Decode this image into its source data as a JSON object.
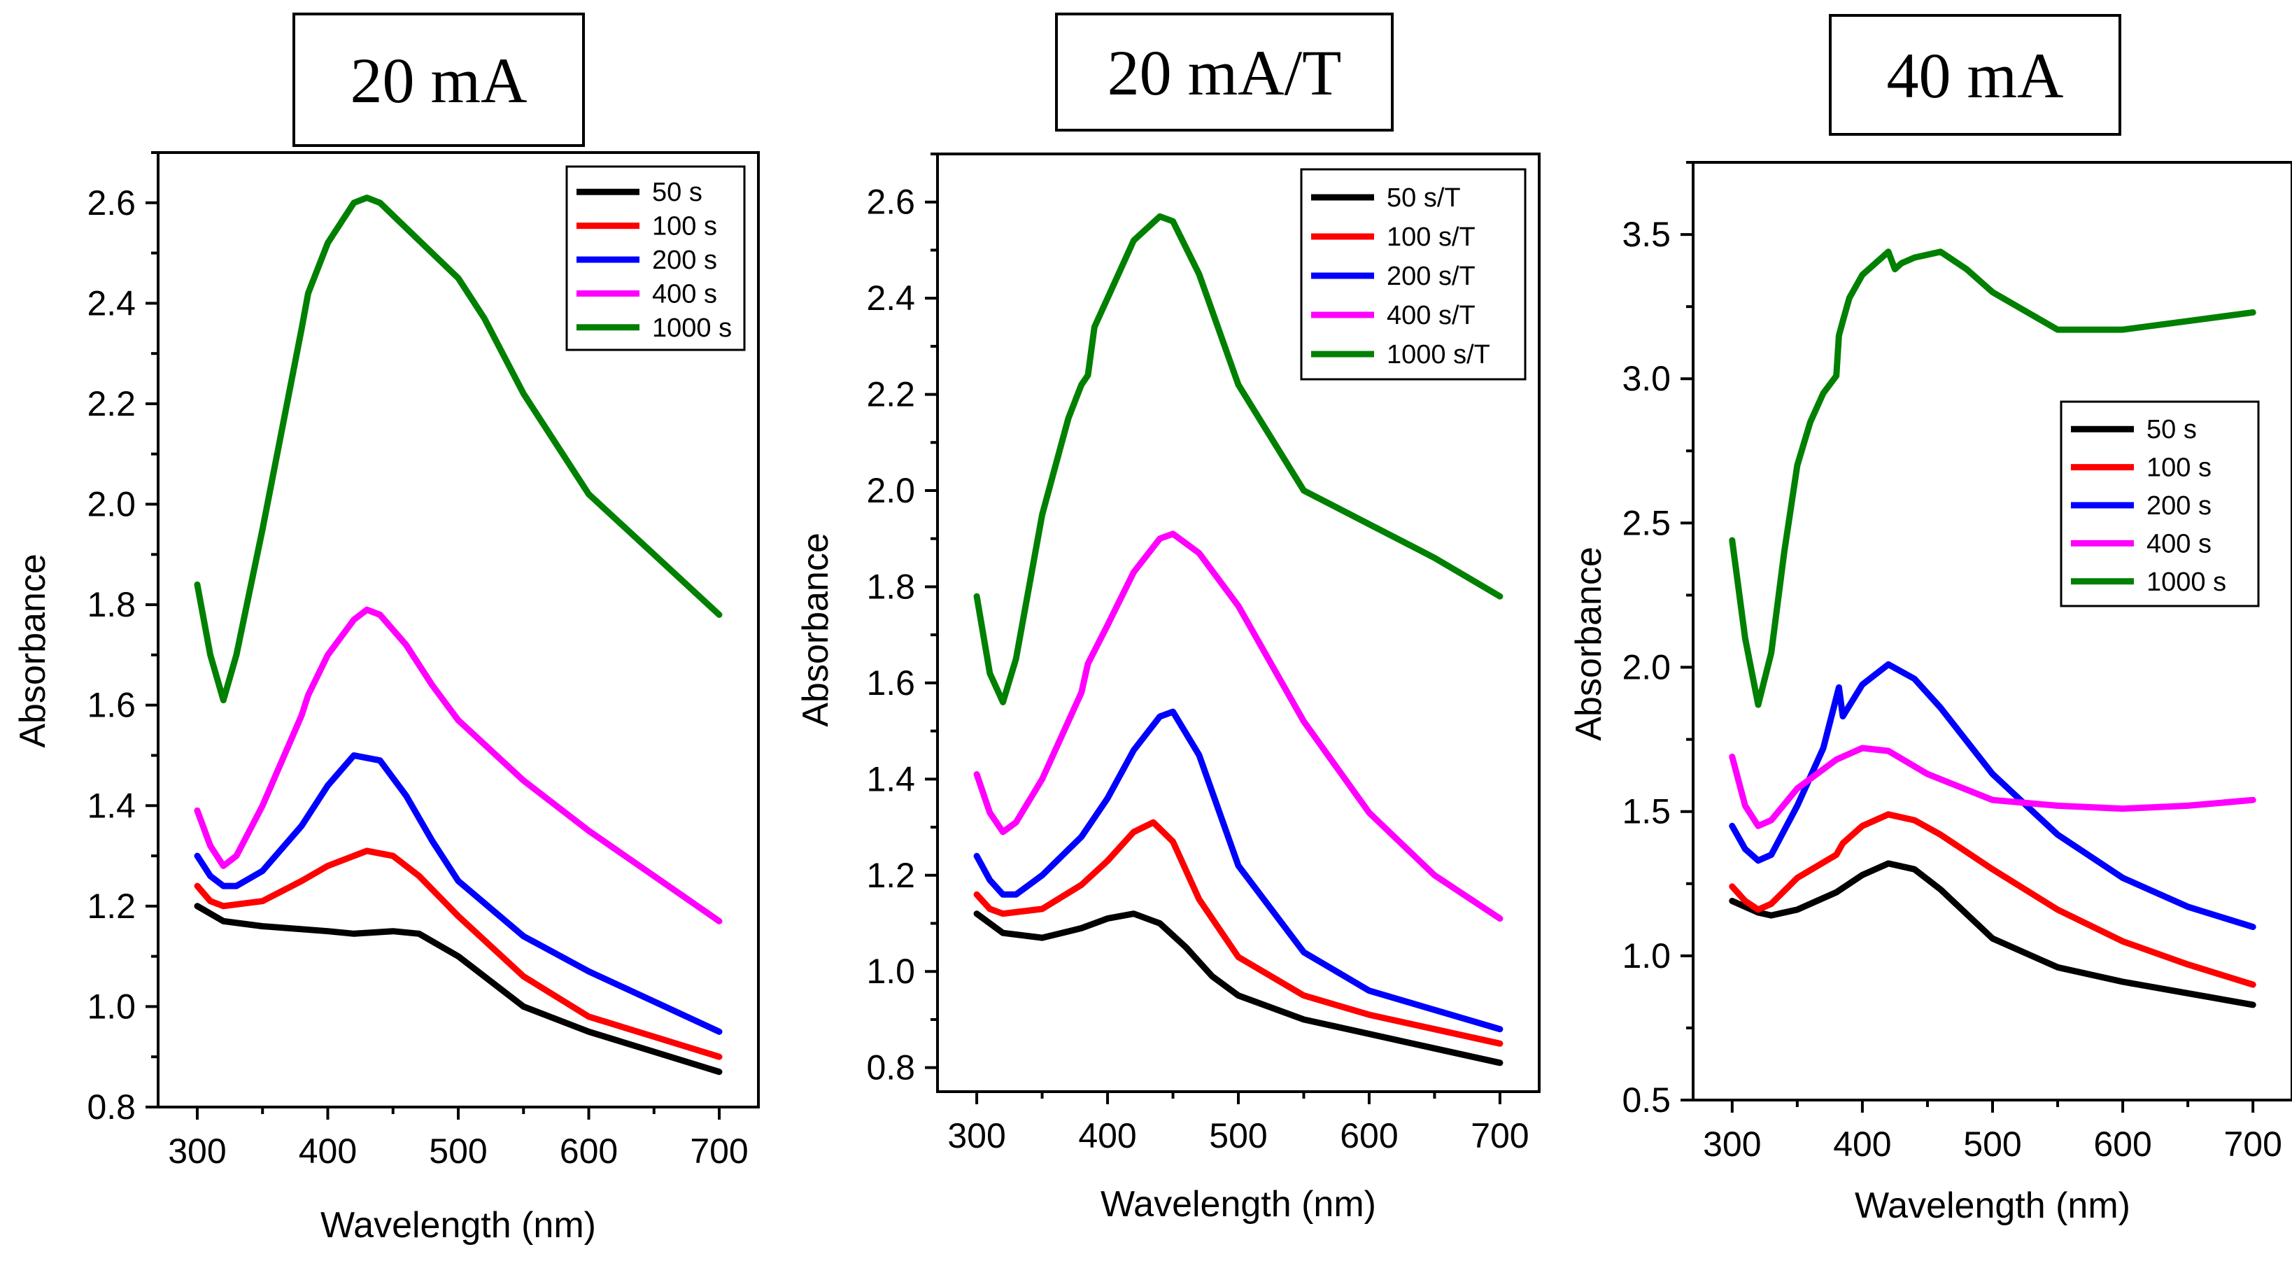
{
  "chart_data": [
    {
      "type": "line",
      "panel_title": "20 mA",
      "xlabel": "Wavelength (nm)",
      "ylabel": "Absorbance",
      "xlim": [
        270,
        730
      ],
      "ylim": [
        0.8,
        2.7
      ],
      "xticks": [
        300,
        400,
        500,
        600,
        700
      ],
      "yticks": [
        0.8,
        1.0,
        1.2,
        1.4,
        1.6,
        1.8,
        2.0,
        2.2,
        2.4,
        2.6
      ],
      "ytick_labels": [
        "0.8",
        "1.0",
        "1.2",
        "1.4",
        "1.6",
        "1.8",
        "2.0",
        "2.2",
        "2.4",
        "2.6"
      ],
      "legend_position": "top-right",
      "series": [
        {
          "name": "50 s",
          "color": "#000000",
          "x": [
            300,
            320,
            350,
            400,
            420,
            450,
            470,
            500,
            550,
            600,
            650,
            700
          ],
          "y": [
            1.2,
            1.17,
            1.16,
            1.15,
            1.145,
            1.15,
            1.145,
            1.1,
            1.0,
            0.95,
            0.91,
            0.87
          ]
        },
        {
          "name": "100 s",
          "color": "#ff0000",
          "x": [
            300,
            310,
            320,
            350,
            380,
            400,
            420,
            430,
            450,
            470,
            500,
            550,
            600,
            650,
            700
          ],
          "y": [
            1.24,
            1.21,
            1.2,
            1.21,
            1.25,
            1.28,
            1.3,
            1.31,
            1.3,
            1.26,
            1.18,
            1.06,
            0.98,
            0.94,
            0.9
          ]
        },
        {
          "name": "200 s",
          "color": "#0000ff",
          "x": [
            300,
            310,
            320,
            330,
            350,
            380,
            400,
            420,
            440,
            460,
            480,
            500,
            550,
            600,
            650,
            700
          ],
          "y": [
            1.3,
            1.26,
            1.24,
            1.24,
            1.27,
            1.36,
            1.44,
            1.5,
            1.49,
            1.42,
            1.33,
            1.25,
            1.14,
            1.07,
            1.01,
            0.95
          ]
        },
        {
          "name": "400 s",
          "color": "#ff00ff",
          "x": [
            300,
            310,
            320,
            330,
            350,
            380,
            385,
            400,
            420,
            430,
            440,
            460,
            480,
            500,
            550,
            600,
            650,
            700
          ],
          "y": [
            1.39,
            1.32,
            1.28,
            1.3,
            1.4,
            1.58,
            1.62,
            1.7,
            1.77,
            1.79,
            1.78,
            1.72,
            1.64,
            1.57,
            1.45,
            1.35,
            1.26,
            1.17
          ]
        },
        {
          "name": "1000 s",
          "color": "#008000",
          "x": [
            300,
            310,
            320,
            330,
            350,
            380,
            385,
            400,
            420,
            430,
            440,
            460,
            480,
            500,
            520,
            550,
            600,
            650,
            700
          ],
          "y": [
            1.84,
            1.7,
            1.61,
            1.7,
            1.95,
            2.35,
            2.42,
            2.52,
            2.6,
            2.61,
            2.6,
            2.55,
            2.5,
            2.45,
            2.37,
            2.22,
            2.02,
            1.9,
            1.78
          ]
        }
      ]
    },
    {
      "type": "line",
      "panel_title": "20 mA/T",
      "xlabel": "Wavelength (nm)",
      "ylabel": "Absorbance",
      "xlim": [
        270,
        730
      ],
      "ylim": [
        0.75,
        2.7
      ],
      "xticks": [
        300,
        400,
        500,
        600,
        700
      ],
      "yticks": [
        0.8,
        1.0,
        1.2,
        1.4,
        1.6,
        1.8,
        2.0,
        2.2,
        2.4,
        2.6
      ],
      "ytick_labels": [
        "0.8",
        "1.0",
        "1.2",
        "1.4",
        "1.6",
        "1.8",
        "2.0",
        "2.2",
        "2.4",
        "2.6"
      ],
      "legend_position": "top-right",
      "series": [
        {
          "name": "50 s/T",
          "color": "#000000",
          "x": [
            300,
            320,
            350,
            380,
            400,
            420,
            440,
            460,
            480,
            500,
            550,
            600,
            650,
            700
          ],
          "y": [
            1.12,
            1.08,
            1.07,
            1.09,
            1.11,
            1.12,
            1.1,
            1.05,
            0.99,
            0.95,
            0.9,
            0.87,
            0.84,
            0.81
          ]
        },
        {
          "name": "100 s/T",
          "color": "#ff0000",
          "x": [
            300,
            310,
            320,
            350,
            380,
            400,
            420,
            435,
            450,
            470,
            500,
            550,
            600,
            650,
            700
          ],
          "y": [
            1.16,
            1.13,
            1.12,
            1.13,
            1.18,
            1.23,
            1.29,
            1.31,
            1.27,
            1.15,
            1.03,
            0.95,
            0.91,
            0.88,
            0.85
          ]
        },
        {
          "name": "200 s/T",
          "color": "#0000ff",
          "x": [
            300,
            310,
            320,
            330,
            350,
            380,
            400,
            420,
            440,
            450,
            470,
            500,
            550,
            600,
            650,
            700
          ],
          "y": [
            1.24,
            1.19,
            1.16,
            1.16,
            1.2,
            1.28,
            1.36,
            1.46,
            1.53,
            1.54,
            1.45,
            1.22,
            1.04,
            0.96,
            0.92,
            0.88
          ]
        },
        {
          "name": "400 s/T",
          "color": "#ff00ff",
          "x": [
            300,
            310,
            320,
            330,
            350,
            380,
            385,
            400,
            420,
            440,
            450,
            470,
            500,
            550,
            600,
            650,
            700
          ],
          "y": [
            1.41,
            1.33,
            1.29,
            1.31,
            1.4,
            1.58,
            1.64,
            1.72,
            1.83,
            1.9,
            1.91,
            1.87,
            1.76,
            1.52,
            1.33,
            1.2,
            1.11
          ]
        },
        {
          "name": "1000 s/T",
          "color": "#008000",
          "x": [
            300,
            310,
            320,
            330,
            350,
            370,
            380,
            385,
            390,
            400,
            420,
            440,
            450,
            470,
            500,
            550,
            600,
            650,
            700
          ],
          "y": [
            1.78,
            1.62,
            1.56,
            1.65,
            1.95,
            2.15,
            2.22,
            2.24,
            2.34,
            2.4,
            2.52,
            2.57,
            2.56,
            2.45,
            2.22,
            2.0,
            1.93,
            1.86,
            1.78
          ]
        }
      ]
    },
    {
      "type": "line",
      "panel_title": "40 mA",
      "xlabel": "Wavelength (nm)",
      "ylabel": "Absorbance",
      "xlim": [
        270,
        730
      ],
      "ylim": [
        0.5,
        3.75
      ],
      "xticks": [
        300,
        400,
        500,
        600,
        700
      ],
      "yticks": [
        0.5,
        1.0,
        1.5,
        2.0,
        2.5,
        3.0,
        3.5
      ],
      "ytick_labels": [
        "0.5",
        "1.0",
        "1.5",
        "2.0",
        "2.5",
        "3.0",
        "3.5"
      ],
      "legend_position": "center-right",
      "series": [
        {
          "name": "50 s",
          "color": "#000000",
          "x": [
            300,
            310,
            320,
            330,
            350,
            380,
            400,
            420,
            440,
            460,
            500,
            550,
            600,
            650,
            700
          ],
          "y": [
            1.19,
            1.17,
            1.15,
            1.14,
            1.16,
            1.22,
            1.28,
            1.32,
            1.3,
            1.23,
            1.06,
            0.96,
            0.91,
            0.87,
            0.83
          ]
        },
        {
          "name": "100 s",
          "color": "#ff0000",
          "x": [
            300,
            310,
            320,
            330,
            350,
            380,
            385,
            400,
            420,
            440,
            460,
            500,
            550,
            600,
            650,
            700
          ],
          "y": [
            1.24,
            1.19,
            1.16,
            1.18,
            1.27,
            1.35,
            1.39,
            1.45,
            1.49,
            1.47,
            1.42,
            1.3,
            1.16,
            1.05,
            0.97,
            0.9
          ]
        },
        {
          "name": "200 s",
          "color": "#0000ff",
          "x": [
            300,
            310,
            320,
            330,
            350,
            370,
            382,
            385,
            400,
            420,
            440,
            460,
            500,
            550,
            600,
            650,
            700
          ],
          "y": [
            1.45,
            1.37,
            1.33,
            1.35,
            1.52,
            1.72,
            1.93,
            1.83,
            1.94,
            2.01,
            1.96,
            1.86,
            1.63,
            1.42,
            1.27,
            1.17,
            1.1
          ]
        },
        {
          "name": "400 s",
          "color": "#ff00ff",
          "x": [
            300,
            310,
            320,
            330,
            350,
            380,
            400,
            420,
            450,
            500,
            550,
            600,
            650,
            700
          ],
          "y": [
            1.69,
            1.52,
            1.45,
            1.47,
            1.58,
            1.68,
            1.72,
            1.71,
            1.63,
            1.54,
            1.52,
            1.51,
            1.52,
            1.54
          ]
        },
        {
          "name": "1000 s",
          "color": "#008000",
          "x": [
            300,
            310,
            320,
            330,
            340,
            350,
            360,
            370,
            380,
            382,
            385,
            390,
            400,
            410,
            420,
            425,
            430,
            440,
            460,
            480,
            500,
            550,
            600,
            650,
            700
          ],
          "y": [
            2.44,
            2.1,
            1.87,
            2.05,
            2.4,
            2.7,
            2.85,
            2.95,
            3.01,
            3.15,
            3.2,
            3.28,
            3.36,
            3.4,
            3.44,
            3.38,
            3.4,
            3.42,
            3.44,
            3.38,
            3.3,
            3.17,
            3.17,
            3.2,
            3.23
          ]
        }
      ]
    }
  ]
}
